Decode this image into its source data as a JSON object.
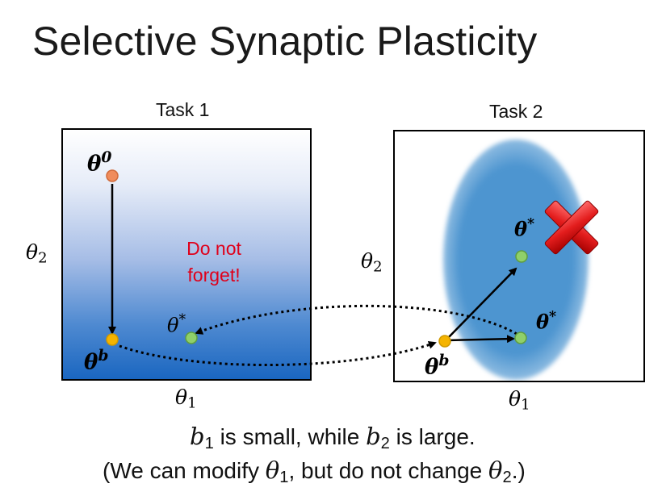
{
  "title": "Selective Synaptic Plasticity",
  "task1": {
    "label": "Task 1",
    "x_axis": "θ",
    "x_axis_sub": "1",
    "y_axis": "θ",
    "y_axis_sub": "2",
    "point_start": "θ",
    "point_start_sup": "0",
    "point_b": "θ",
    "point_b_sup": "b",
    "point_star": "θ",
    "point_star_sup": "*",
    "note_line1": "Do not",
    "note_line2": "forget!"
  },
  "task2": {
    "label": "Task 2",
    "x_axis": "θ",
    "x_axis_sub": "1",
    "y_axis": "θ",
    "y_axis_sub": "2",
    "point_b": "θ",
    "point_b_sup": "b",
    "point_star_top": "θ",
    "point_star_top_sup": "*",
    "point_star_right": "θ",
    "point_star_right_sup": "*"
  },
  "caption": {
    "line1_b1": "b",
    "line1_b1_sub": "1",
    "line1_mid": " is small, while ",
    "line1_b2": "b",
    "line1_b2_sub": "2",
    "line1_end": " is large.",
    "line2_start": "(We can modify ",
    "line2_t1": "θ",
    "line2_t1_sub": "1",
    "line2_mid": ", but do not change ",
    "line2_t2": "θ",
    "line2_t2_sub": "2",
    "line2_end": ".)"
  },
  "colors": {
    "start_point": "#f08c5c",
    "b_point": "#f5b400",
    "star_point": "#8fd06a",
    "note_red": "#e0001a",
    "blob_blue": "#4d95d0"
  }
}
